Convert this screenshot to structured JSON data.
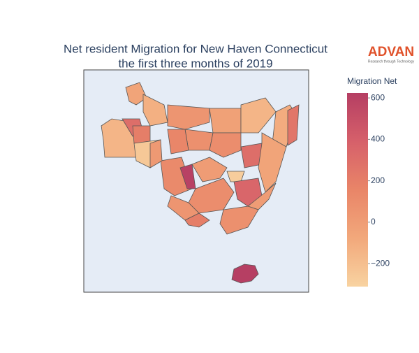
{
  "chart_data": {
    "type": "choropleth",
    "title": "Net resident Migration for New Haven Connecticut",
    "subtitle": "the first three months of 2019",
    "logo_text": "ADVAN",
    "logo_tagline": "Research through Technology",
    "colorbar_title": "Migration Net",
    "colorscale": [
      "#f8d3a1",
      "#f2a87b",
      "#e98568",
      "#d6606a",
      "#b53e63"
    ],
    "clim": [
      -311,
      624
    ],
    "cticks": [
      {
        "value": -200,
        "label": "−200"
      },
      0,
      200,
      400,
      600
    ],
    "values": [
      -150,
      -50,
      -120,
      300,
      200,
      -250,
      50,
      -30,
      -150,
      -100,
      250,
      80,
      150,
      100,
      300,
      -50,
      120,
      600,
      0,
      -280,
      100,
      350,
      0,
      80,
      50,
      200,
      20,
      620
    ]
  }
}
